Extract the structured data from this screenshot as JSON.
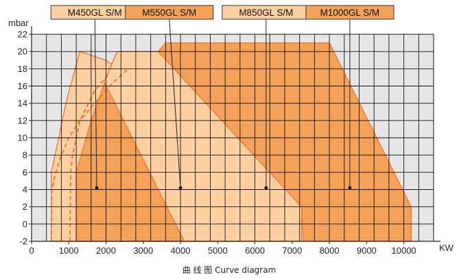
{
  "caption": "曲 线 图 Curve diagram",
  "chart_data": {
    "type": "area",
    "xlabel": "KW",
    "ylabel": "mbar",
    "xlim": [
      0,
      10800
    ],
    "ylim": [
      -2,
      22
    ],
    "x_ticks": [
      0,
      1000,
      2000,
      3000,
      4000,
      5000,
      6000,
      7000,
      8000,
      9000,
      10000
    ],
    "y_ticks": [
      -2,
      0,
      2,
      4,
      6,
      8,
      10,
      12,
      14,
      16,
      18,
      20,
      22
    ],
    "grid": true,
    "legend_position": "top",
    "colors": {
      "background": "#e6e6e6",
      "grid": "#111111",
      "light_fill": "#fdd0a2",
      "dark_fill": "#f4a15a",
      "edge": "#ec7a34"
    },
    "series": [
      {
        "name": "M450GL S/M",
        "fill": "light",
        "polygon": [
          [
            530,
            -2
          ],
          [
            530,
            6
          ],
          [
            950,
            14.5
          ],
          [
            1300,
            20
          ],
          [
            2000,
            19
          ],
          [
            2300,
            18
          ],
          [
            2900,
            12
          ],
          [
            3300,
            8
          ],
          [
            4000,
            2
          ],
          [
            4300,
            -2
          ]
        ],
        "start_curve": [
          [
            530,
            -2
          ],
          [
            540,
            4
          ],
          [
            650,
            6
          ],
          [
            800,
            8
          ],
          [
            1000,
            10
          ],
          [
            1300,
            12
          ],
          [
            1700,
            14
          ],
          [
            2100,
            16
          ],
          [
            2600,
            18
          ]
        ],
        "marker": [
          1750,
          4.2
        ]
      },
      {
        "name": "M550GL S/M",
        "fill": "dark",
        "polygon": [
          [
            1200,
            -2
          ],
          [
            1200,
            6
          ],
          [
            1600,
            12
          ],
          [
            2100,
            18
          ],
          [
            2300,
            20
          ],
          [
            3600,
            20
          ],
          [
            4000,
            17
          ],
          [
            5000,
            9
          ],
          [
            5400,
            0
          ],
          [
            5400,
            -2
          ]
        ],
        "start_curve": [
          [
            1030,
            -2
          ],
          [
            1050,
            6
          ],
          [
            1100,
            8
          ],
          [
            1300,
            12
          ],
          [
            1700,
            15.5
          ],
          [
            2100,
            17.5
          ]
        ],
        "marker": [
          4000,
          4.2
        ]
      },
      {
        "name": "M850GL S/M",
        "fill": "light",
        "polygon": [
          [
            1950,
            16.5
          ],
          [
            2300,
            20
          ],
          [
            5100,
            20
          ],
          [
            7250,
            2
          ],
          [
            7250,
            -2
          ],
          [
            4100,
            -2
          ]
        ],
        "start_curve": [],
        "marker": [
          6300,
          4.2
        ]
      },
      {
        "name": "M1000GL S/M",
        "fill": "dark",
        "polygon": [
          [
            3400,
            20
          ],
          [
            3600,
            21
          ],
          [
            8000,
            21
          ],
          [
            10200,
            2
          ],
          [
            10200,
            -2
          ],
          [
            7300,
            -2
          ],
          [
            7250,
            2
          ]
        ],
        "start_curve": [],
        "marker": [
          8550,
          4.2
        ]
      }
    ],
    "legend_x": [
      1700,
      3700,
      6300,
      8550
    ]
  }
}
